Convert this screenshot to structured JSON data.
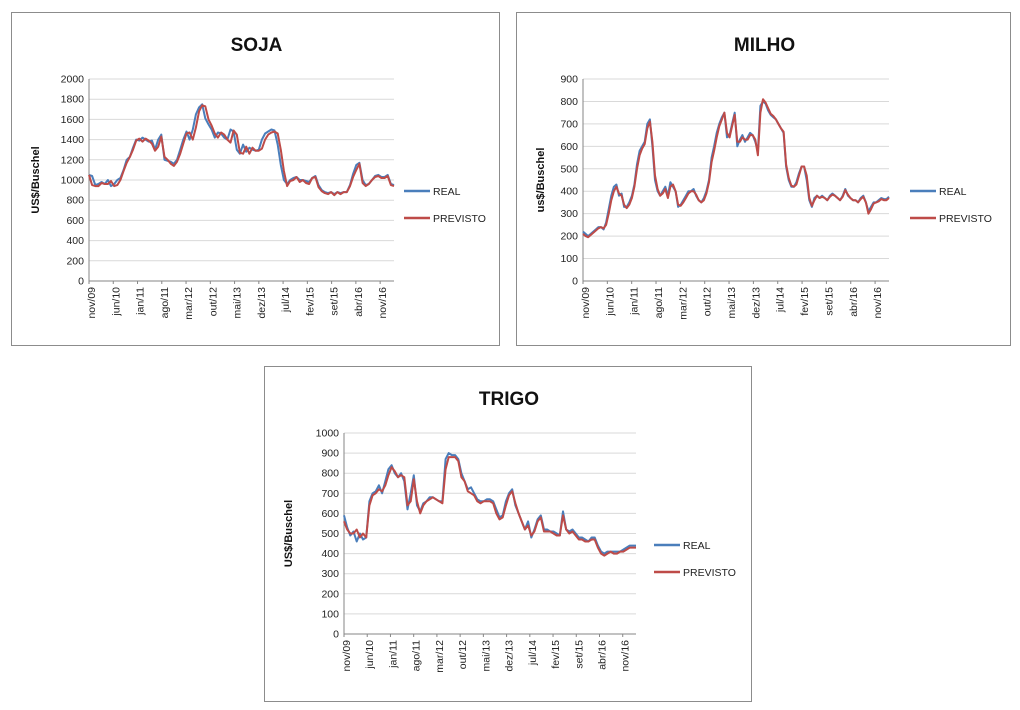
{
  "colors": {
    "real": "#4a7ebb",
    "previsto": "#be4b48",
    "grid": "#d9d9d9",
    "axis": "#868686",
    "text": "#222222"
  },
  "chart_data": [
    {
      "type": "line",
      "title": "SOJA",
      "ylabel": "US$/Buschel",
      "xlabel": "",
      "ylim": [
        0,
        2000
      ],
      "yticks": [
        "0",
        "200",
        "400",
        "600",
        "800",
        "1000",
        "1200",
        "1400",
        "1600",
        "1800",
        "2000"
      ],
      "xtick_labels": [
        "nov/09",
        "jun/10",
        "jan/11",
        "ago/11",
        "mar/12",
        "out/12",
        "mai/13",
        "dez/13",
        "jul/14",
        "fev/15",
        "set/15",
        "abr/16",
        "nov/16"
      ],
      "x_start": "nov/09",
      "x_end": "mar/17",
      "grid": true,
      "legend_placement": "right",
      "series": [
        {
          "name": "REAL",
          "values": [
            1050,
            1040,
            950,
            960,
            980,
            960,
            1000,
            940,
            960,
            1000,
            1020,
            1100,
            1200,
            1230,
            1320,
            1400,
            1390,
            1420,
            1400,
            1380,
            1390,
            1300,
            1400,
            1450,
            1200,
            1190,
            1180,
            1160,
            1200,
            1300,
            1400,
            1480,
            1400,
            1500,
            1650,
            1720,
            1750,
            1610,
            1550,
            1500,
            1420,
            1470,
            1460,
            1420,
            1400,
            1500,
            1480,
            1300,
            1260,
            1350,
            1280,
            1320,
            1300,
            1290,
            1300,
            1400,
            1460,
            1480,
            1500,
            1490,
            1350,
            1150,
            1000,
            960,
            1000,
            1020,
            1030,
            1000,
            1000,
            990,
            980,
            1020,
            1040,
            950,
            900,
            880,
            870,
            880,
            860,
            880,
            870,
            880,
            880,
            950,
            1060,
            1150,
            1170,
            1000,
            950,
            960,
            1000,
            1040,
            1050,
            1030,
            1030,
            1050,
            960,
            950
          ]
        },
        {
          "name": "PREVISTO",
          "values": [
            1050,
            950,
            940,
            940,
            970,
            960,
            960,
            990,
            940,
            950,
            1000,
            1090,
            1170,
            1230,
            1300,
            1390,
            1410,
            1380,
            1410,
            1390,
            1360,
            1290,
            1330,
            1430,
            1230,
            1200,
            1160,
            1140,
            1180,
            1260,
            1360,
            1460,
            1470,
            1400,
            1520,
            1680,
            1740,
            1730,
            1600,
            1540,
            1460,
            1420,
            1470,
            1450,
            1400,
            1370,
            1490,
            1450,
            1270,
            1260,
            1330,
            1260,
            1320,
            1290,
            1290,
            1310,
            1400,
            1450,
            1470,
            1480,
            1460,
            1300,
            1090,
            940,
            990,
            1000,
            1030,
            980,
            1000,
            970,
            960,
            1020,
            1030,
            930,
            890,
            870,
            860,
            880,
            850,
            880,
            860,
            880,
            880,
            940,
            1030,
            1100,
            1160,
            970,
            940,
            960,
            1000,
            1030,
            1040,
            1020,
            1020,
            1040,
            950,
            940
          ]
        }
      ]
    },
    {
      "type": "line",
      "title": "MILHO",
      "ylabel": "us$/Buschel",
      "xlabel": "",
      "ylim": [
        0,
        900
      ],
      "yticks": [
        "0",
        "100",
        "200",
        "300",
        "400",
        "500",
        "600",
        "700",
        "800",
        "900"
      ],
      "xtick_labels": [
        "nov/09",
        "jun/10",
        "jan/11",
        "ago/11",
        "mar/12",
        "out/12",
        "mai/13",
        "dez/13",
        "jul/14",
        "fev/15",
        "set/15",
        "abr/16",
        "nov/16"
      ],
      "x_start": "nov/09",
      "x_end": "mar/17",
      "grid": true,
      "legend_placement": "right",
      "series": [
        {
          "name": "REAL",
          "values": [
            220,
            210,
            200,
            210,
            220,
            230,
            240,
            240,
            230,
            260,
            320,
            380,
            420,
            430,
            380,
            390,
            330,
            330,
            350,
            380,
            430,
            520,
            580,
            600,
            620,
            700,
            720,
            600,
            450,
            400,
            380,
            400,
            420,
            380,
            440,
            420,
            400,
            330,
            340,
            360,
            380,
            400,
            400,
            410,
            380,
            360,
            350,
            370,
            400,
            450,
            550,
            600,
            660,
            700,
            730,
            750,
            640,
            650,
            700,
            750,
            600,
            630,
            650,
            620,
            640,
            660,
            650,
            620,
            580,
            780,
            800,
            790,
            760,
            740,
            730,
            720,
            700,
            680,
            660,
            510,
            450,
            420,
            420,
            440,
            480,
            510,
            510,
            450,
            360,
            330,
            370,
            380,
            370,
            380,
            370,
            360,
            380,
            390,
            380,
            370,
            360,
            380,
            410,
            380,
            370,
            360,
            360,
            350,
            370,
            380,
            350,
            310,
            330,
            350,
            350,
            360,
            370,
            365,
            365,
            375
          ]
        },
        {
          "name": "PREVISTO",
          "values": [
            210,
            200,
            195,
            205,
            215,
            225,
            235,
            240,
            235,
            250,
            300,
            360,
            400,
            420,
            390,
            380,
            340,
            325,
            340,
            370,
            420,
            500,
            560,
            590,
            610,
            680,
            710,
            620,
            470,
            410,
            380,
            390,
            410,
            370,
            420,
            430,
            400,
            340,
            335,
            350,
            370,
            390,
            400,
            400,
            385,
            360,
            350,
            360,
            390,
            440,
            530,
            580,
            640,
            690,
            720,
            750,
            660,
            640,
            690,
            740,
            620,
            620,
            640,
            630,
            630,
            650,
            650,
            630,
            560,
            750,
            810,
            795,
            770,
            745,
            735,
            720,
            700,
            680,
            665,
            520,
            460,
            425,
            420,
            430,
            470,
            510,
            510,
            470,
            370,
            335,
            360,
            380,
            370,
            375,
            370,
            360,
            375,
            385,
            380,
            370,
            360,
            375,
            405,
            385,
            370,
            360,
            360,
            350,
            365,
            375,
            350,
            300,
            320,
            345,
            350,
            355,
            365,
            360,
            360,
            370
          ]
        }
      ]
    },
    {
      "type": "line",
      "title": "TRIGO",
      "ylabel": "US$/Buschel",
      "xlabel": "",
      "ylim": [
        0,
        1000
      ],
      "yticks": [
        "0",
        "100",
        "200",
        "300",
        "400",
        "500",
        "600",
        "700",
        "800",
        "900",
        "1000"
      ],
      "xtick_labels": [
        "nov/09",
        "jun/10",
        "jan/11",
        "ago/11",
        "mar/12",
        "out/12",
        "mai/13",
        "dez/13",
        "jul/14",
        "fev/15",
        "set/15",
        "abr/16",
        "nov/16"
      ],
      "x_start": "nov/09",
      "x_end": "mar/17",
      "grid": true,
      "legend_placement": "right",
      "series": [
        {
          "name": "REAL",
          "values": [
            590,
            530,
            490,
            510,
            460,
            500,
            470,
            480,
            660,
            700,
            710,
            740,
            700,
            760,
            820,
            840,
            800,
            780,
            800,
            760,
            620,
            700,
            790,
            640,
            610,
            650,
            660,
            680,
            680,
            670,
            660,
            660,
            870,
            900,
            890,
            890,
            870,
            800,
            760,
            720,
            730,
            700,
            670,
            660,
            660,
            670,
            670,
            660,
            620,
            580,
            590,
            660,
            700,
            720,
            640,
            600,
            560,
            520,
            560,
            480,
            520,
            570,
            590,
            520,
            520,
            510,
            510,
            500,
            490,
            610,
            520,
            510,
            520,
            500,
            480,
            480,
            470,
            460,
            480,
            480,
            440,
            410,
            400,
            410,
            410,
            410,
            410,
            410,
            420,
            430,
            440,
            440,
            440
          ]
        },
        {
          "name": "PREVISTO",
          "values": [
            560,
            520,
            500,
            500,
            520,
            480,
            500,
            480,
            640,
            690,
            700,
            720,
            710,
            740,
            790,
            830,
            810,
            780,
            790,
            780,
            640,
            660,
            770,
            660,
            600,
            640,
            660,
            670,
            680,
            670,
            660,
            650,
            820,
            880,
            880,
            880,
            860,
            780,
            760,
            710,
            700,
            690,
            660,
            650,
            660,
            660,
            660,
            650,
            600,
            570,
            580,
            640,
            690,
            710,
            650,
            600,
            560,
            520,
            540,
            490,
            510,
            560,
            580,
            510,
            510,
            510,
            500,
            490,
            490,
            590,
            520,
            500,
            510,
            490,
            470,
            470,
            460,
            460,
            470,
            470,
            430,
            400,
            390,
            400,
            410,
            400,
            400,
            410,
            410,
            420,
            430,
            430,
            430
          ]
        }
      ]
    }
  ]
}
